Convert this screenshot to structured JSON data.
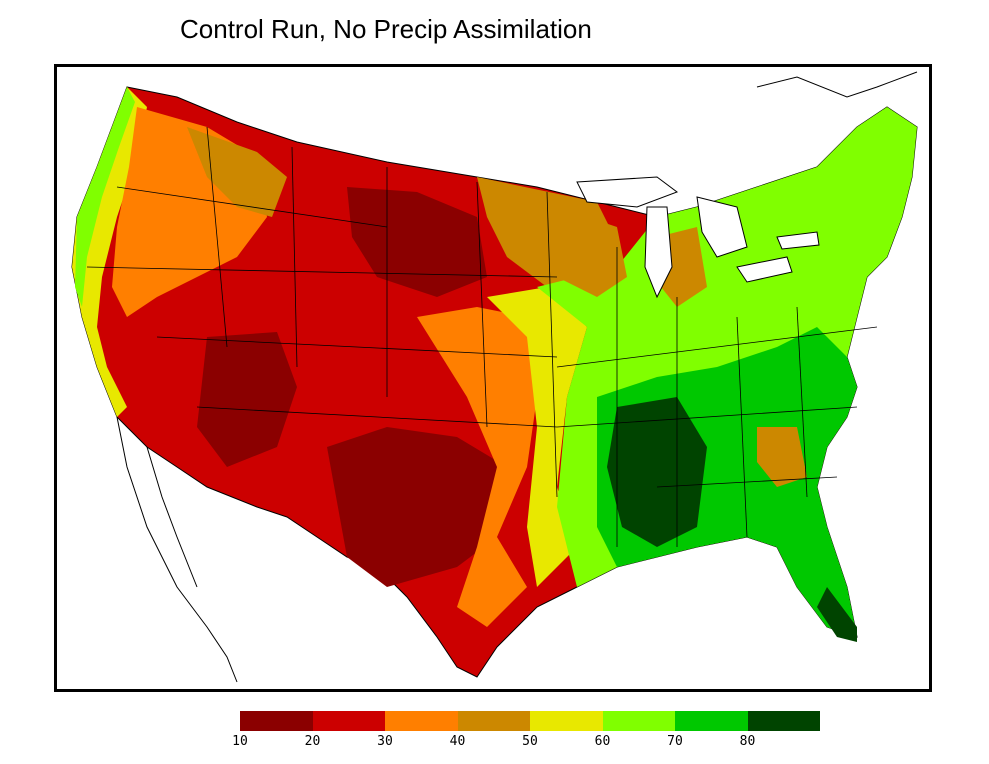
{
  "title": "Control Run, No Precip Assimilation",
  "legend": {
    "colors": [
      "#8b0000",
      "#cc0000",
      "#ff7f00",
      "#cc8800",
      "#e8e800",
      "#80ff00",
      "#00c800",
      "#004400"
    ],
    "ticks": [
      "10",
      "20",
      "30",
      "40",
      "50",
      "60",
      "70",
      "80"
    ]
  },
  "map": {
    "region": "contiguous-united-states",
    "field_bins": [
      "10-20",
      "20-30",
      "30-40",
      "40-50",
      "50-60",
      "60-70",
      "70-80",
      ">80"
    ]
  }
}
